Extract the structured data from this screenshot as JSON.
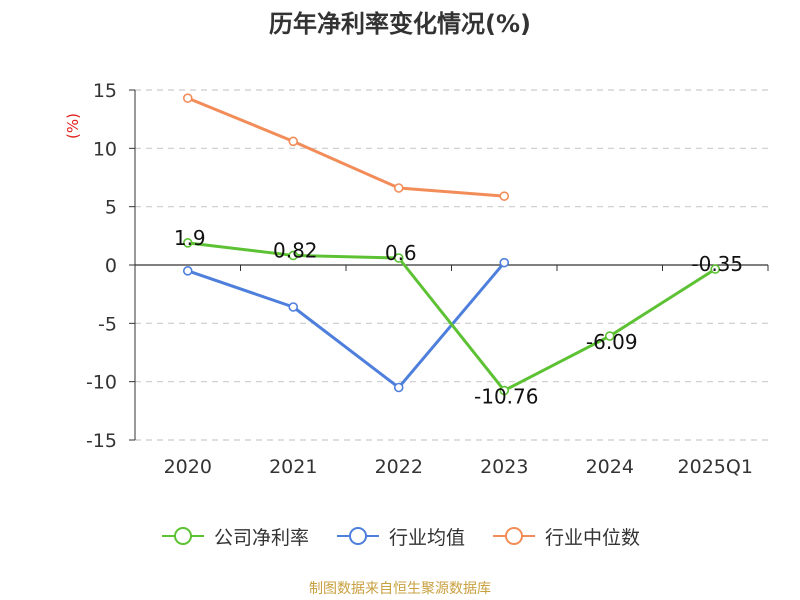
{
  "chart_data": {
    "type": "line",
    "title": "历年净利率变化情况(%)",
    "ylabel": "(%)",
    "xlabel": "",
    "categories": [
      "2020",
      "2021",
      "2022",
      "2023",
      "2024",
      "2025Q1"
    ],
    "ylim": [
      -15,
      15
    ],
    "yticks": [
      15,
      10,
      5,
      0,
      -5,
      -10,
      -15
    ],
    "grid": true,
    "legend_position": "bottom",
    "series": [
      {
        "name": "公司净利率",
        "color": "#5dc233",
        "values": [
          1.9,
          0.82,
          0.6,
          -10.76,
          -6.09,
          -0.35
        ],
        "labels": [
          "1.9",
          "0.82",
          "0.6",
          "-10.76",
          "-6.09",
          "-0.35"
        ]
      },
      {
        "name": "行业均值",
        "color": "#4e7fdc",
        "values": [
          -0.5,
          -3.6,
          -10.5,
          0.2,
          null,
          null
        ],
        "labels": []
      },
      {
        "name": "行业中位数",
        "color": "#f28d5a",
        "values": [
          14.3,
          10.6,
          6.6,
          5.9,
          null,
          null
        ],
        "labels": []
      }
    ]
  },
  "source": "制图数据来自恒生聚源数据库"
}
